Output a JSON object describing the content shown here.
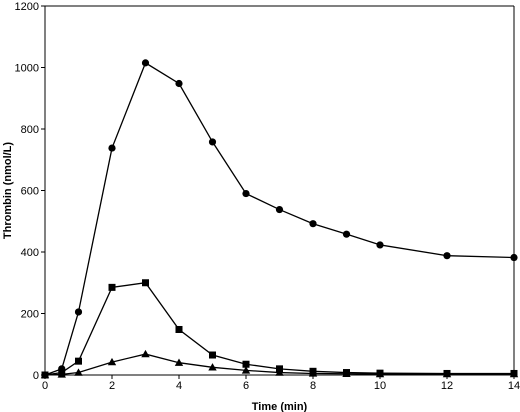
{
  "chart_data": {
    "type": "line",
    "xlabel": "Time (min)",
    "ylabel": "Thrombin (nmol/L)",
    "xlim": [
      0,
      14
    ],
    "ylim": [
      0,
      1200
    ],
    "x_ticks": [
      0,
      2,
      4,
      6,
      8,
      10,
      12,
      14
    ],
    "y_ticks": [
      0,
      200,
      400,
      600,
      800,
      1000,
      1200
    ],
    "grid": false,
    "legend": "none",
    "series": [
      {
        "marker": "circle",
        "points": [
          [
            0,
            0
          ],
          [
            0.5,
            20
          ],
          [
            1,
            205
          ],
          [
            2,
            738
          ],
          [
            3,
            1015
          ],
          [
            4,
            948
          ],
          [
            5,
            758
          ],
          [
            6,
            590
          ],
          [
            7,
            538
          ],
          [
            8,
            492
          ],
          [
            9,
            458
          ],
          [
            10,
            423
          ],
          [
            12,
            388
          ],
          [
            14,
            382
          ]
        ]
      },
      {
        "marker": "square",
        "points": [
          [
            0,
            0
          ],
          [
            0.5,
            8
          ],
          [
            1,
            45
          ],
          [
            2,
            285
          ],
          [
            3,
            300
          ],
          [
            4,
            148
          ],
          [
            5,
            65
          ],
          [
            6,
            35
          ],
          [
            7,
            20
          ],
          [
            8,
            12
          ],
          [
            9,
            8
          ],
          [
            10,
            6
          ],
          [
            12,
            5
          ],
          [
            14,
            5
          ]
        ]
      },
      {
        "marker": "triangle",
        "points": [
          [
            0,
            0
          ],
          [
            0.5,
            2
          ],
          [
            1,
            8
          ],
          [
            2,
            42
          ],
          [
            3,
            68
          ],
          [
            4,
            40
          ],
          [
            5,
            25
          ],
          [
            6,
            15
          ],
          [
            7,
            8
          ],
          [
            8,
            5
          ],
          [
            9,
            4
          ],
          [
            10,
            3
          ],
          [
            12,
            3
          ],
          [
            14,
            3
          ]
        ]
      }
    ]
  }
}
